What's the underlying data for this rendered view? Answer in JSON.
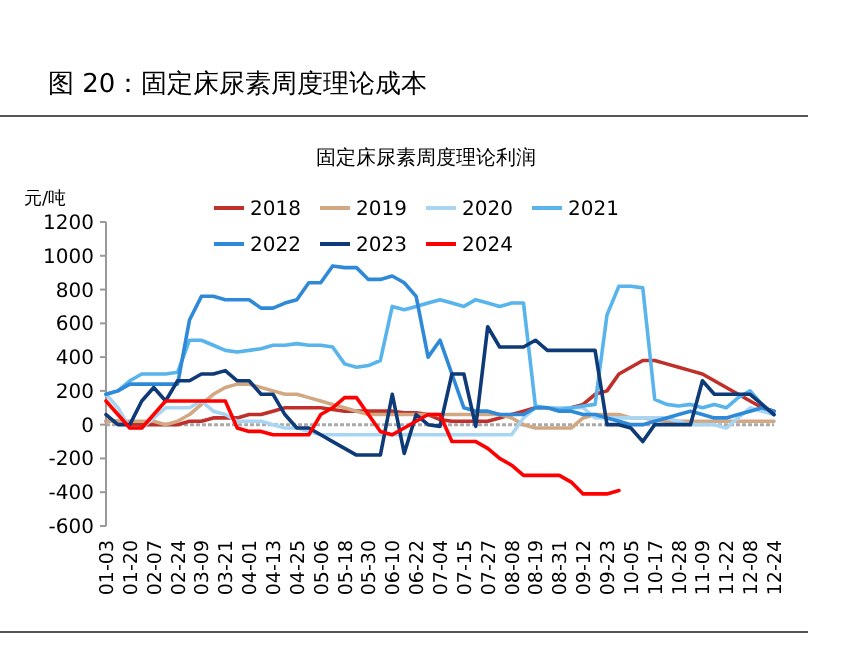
{
  "chart_data": {
    "type": "line",
    "title": "图 20：固定床尿素周度理论成本",
    "subtitle": "固定床尿素周度理论利润",
    "ylabel": "元/吨",
    "categories": [
      "01-03",
      null,
      "01-20",
      null,
      "02-07",
      null,
      "02-24",
      null,
      "03-09",
      null,
      "03-21",
      null,
      "04-01",
      null,
      "04-13",
      null,
      "04-25",
      null,
      "05-06",
      null,
      "05-18",
      null,
      "05-30",
      null,
      "06-10",
      null,
      "06-22",
      null,
      "07-04",
      null,
      "07-15",
      null,
      "07-27",
      null,
      "08-08",
      null,
      "08-19",
      null,
      "08-31",
      null,
      "09-12",
      null,
      "09-23",
      null,
      "10-05",
      null,
      "10-17",
      null,
      "10-28",
      null,
      "11-09",
      null,
      "11-22",
      null,
      "12-08",
      null,
      "12-24"
    ],
    "ylim": [
      -600,
      1200
    ],
    "yticks": [
      -600,
      -400,
      -200,
      0,
      200,
      400,
      600,
      800,
      1000,
      1200
    ],
    "legend": "top",
    "series": [
      {
        "name": "2018",
        "color": "#c0302a",
        "values": [
          20,
          20,
          0,
          0,
          0,
          0,
          0,
          20,
          20,
          40,
          40,
          40,
          60,
          60,
          80,
          100,
          100,
          100,
          100,
          90,
          80,
          80,
          80,
          80,
          80,
          70,
          70,
          60,
          30,
          20,
          20,
          20,
          20,
          40,
          60,
          80,
          100,
          100,
          100,
          100,
          120,
          180,
          200,
          300,
          340,
          380,
          380,
          360,
          340,
          320,
          300,
          260,
          220,
          180,
          140,
          100,
          80
        ]
      },
      {
        "name": "2019",
        "color": "#d2a882",
        "values": [
          20,
          20,
          20,
          20,
          20,
          0,
          20,
          60,
          120,
          180,
          220,
          240,
          240,
          220,
          200,
          180,
          180,
          160,
          140,
          120,
          100,
          80,
          60,
          60,
          60,
          60,
          60,
          60,
          60,
          60,
          60,
          60,
          60,
          60,
          40,
          0,
          -20,
          -20,
          -20,
          -20,
          40,
          60,
          60,
          60,
          40,
          40,
          30,
          20,
          20,
          20,
          20,
          20,
          20,
          20,
          20,
          20,
          20
        ]
      },
      {
        "name": "2020",
        "color": "#a8d5f2",
        "values": [
          180,
          100,
          -20,
          -20,
          40,
          100,
          100,
          100,
          140,
          80,
          60,
          20,
          20,
          20,
          0,
          -20,
          -20,
          -40,
          -60,
          -60,
          -60,
          -60,
          -60,
          -60,
          -60,
          -60,
          -60,
          -60,
          -60,
          -60,
          -60,
          -60,
          -60,
          -60,
          -60,
          40,
          100,
          100,
          100,
          100,
          100,
          40,
          40,
          40,
          40,
          40,
          40,
          40,
          20,
          0,
          0,
          0,
          -20,
          40,
          100,
          80,
          60
        ]
      },
      {
        "name": "2021",
        "color": "#58b4ea",
        "values": [
          180,
          200,
          260,
          300,
          300,
          300,
          310,
          500,
          500,
          470,
          440,
          430,
          440,
          450,
          470,
          470,
          480,
          470,
          470,
          460,
          360,
          340,
          350,
          380,
          700,
          680,
          700,
          720,
          740,
          720,
          700,
          740,
          720,
          700,
          720,
          720,
          110,
          100,
          90,
          100,
          110,
          120,
          650,
          820,
          820,
          810,
          150,
          120,
          110,
          120,
          100,
          120,
          100,
          160,
          200,
          120,
          60
        ]
      },
      {
        "name": "2022",
        "color": "#2e8ad8",
        "values": [
          180,
          200,
          240,
          240,
          240,
          240,
          240,
          620,
          760,
          760,
          740,
          740,
          740,
          690,
          690,
          720,
          740,
          840,
          840,
          940,
          930,
          930,
          860,
          860,
          880,
          840,
          760,
          400,
          500,
          300,
          100,
          80,
          80,
          60,
          60,
          60,
          100,
          100,
          80,
          80,
          60,
          60,
          40,
          20,
          0,
          0,
          20,
          40,
          60,
          80,
          60,
          40,
          40,
          60,
          80,
          100,
          80
        ]
      },
      {
        "name": "2023",
        "color": "#0e3a78",
        "values": [
          60,
          0,
          0,
          140,
          220,
          140,
          260,
          260,
          300,
          300,
          320,
          260,
          260,
          180,
          180,
          60,
          -20,
          -20,
          -60,
          -100,
          -140,
          -180,
          -180,
          -180,
          180,
          -170,
          60,
          0,
          -10,
          300,
          300,
          -10,
          580,
          460,
          460,
          460,
          500,
          440,
          440,
          440,
          440,
          440,
          0,
          0,
          -20,
          -100,
          0,
          0,
          0,
          0,
          260,
          180,
          180,
          180,
          180,
          120,
          60
        ]
      },
      {
        "name": "2024",
        "color": "#ff0000",
        "values": [
          140,
          60,
          -20,
          -20,
          60,
          140,
          140,
          140,
          140,
          140,
          140,
          -20,
          -40,
          -40,
          -60,
          -60,
          -60,
          -60,
          60,
          100,
          160,
          160,
          60,
          -40,
          -60,
          -20,
          20,
          60,
          60,
          -100,
          -100,
          -100,
          -140,
          -200,
          -240,
          -300,
          -300,
          -300,
          -300,
          -340,
          -410,
          -410,
          -410,
          -390,
          null,
          null,
          null,
          null,
          null,
          null,
          null,
          null,
          null,
          null,
          null,
          null,
          null
        ]
      }
    ]
  }
}
